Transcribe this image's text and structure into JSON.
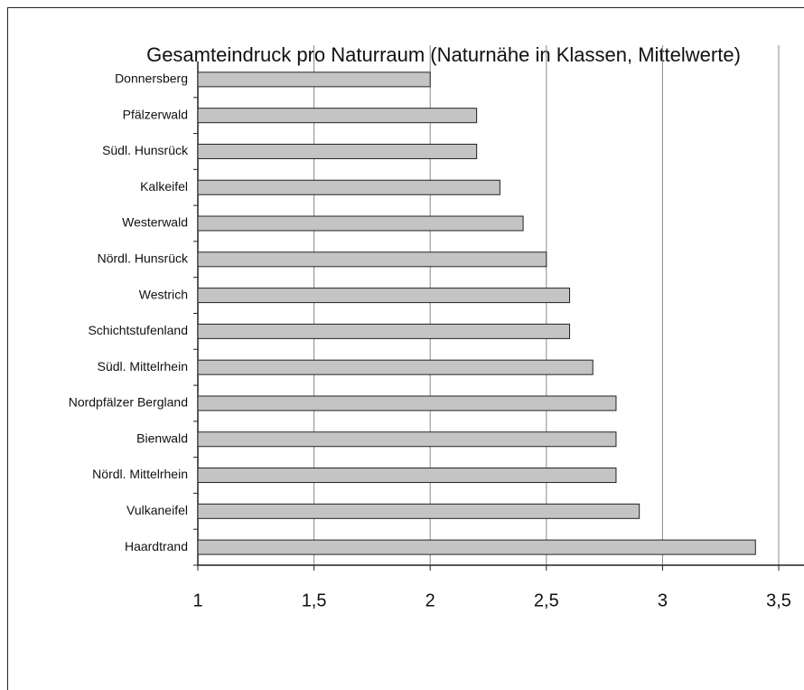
{
  "chart_data": {
    "type": "bar",
    "title": "Gesamteindruck pro Naturraum (Naturnähe in Klassen, Mittelwerte)",
    "categories": [
      "Donnersberg",
      "Pfälzerwald",
      "Südl. Hunsrück",
      "Kalkeifel",
      "Westerwald",
      "Nördl. Hunsrück",
      "Westrich",
      "Schichtstufenland",
      "Südl. Mittelrhein",
      "Nordpfälzer Bergland",
      "Bienwald",
      "Nördl. Mittelrhein",
      "Vulkaneifel",
      "Haardtrand"
    ],
    "values": [
      2,
      2.2,
      2.2,
      2.3,
      2.4,
      2.5,
      2.6,
      2.6,
      2.7,
      2.8,
      2.8,
      2.8,
      2.9,
      3.4
    ],
    "color": "#c4c4c4",
    "xlim": [
      1,
      3.5
    ],
    "xticks": [
      1,
      {
        "value": 1.5,
        "label": "1,5"
      },
      2,
      {
        "value": 2.5,
        "label": "2,5"
      },
      3,
      {
        "value": 3.5,
        "label": "3,5"
      }
    ],
    "grid": true
  }
}
